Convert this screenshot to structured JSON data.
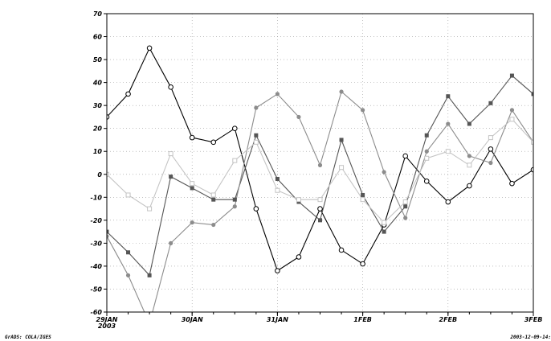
{
  "chart_data": {
    "type": "line",
    "x_ticks": [
      {
        "index": 0,
        "label": "29JAN",
        "sublabel": "2003"
      },
      {
        "index": 4,
        "label": "30JAN"
      },
      {
        "index": 8,
        "label": "31JAN"
      },
      {
        "index": 12,
        "label": "1FEB"
      },
      {
        "index": 16,
        "label": "2FEB"
      },
      {
        "index": 20,
        "label": "3FEB"
      }
    ],
    "x_points": 21,
    "x_range": [
      0,
      20
    ],
    "ylim": [
      -60,
      70
    ],
    "y_ticks": [
      -60,
      -50,
      -40,
      -30,
      -20,
      -10,
      0,
      10,
      20,
      30,
      40,
      50,
      60,
      70
    ],
    "grid": true,
    "series": [
      {
        "color": "#000000",
        "marker": "circle-open",
        "values": [
          25,
          35,
          55,
          38,
          16,
          14,
          20,
          -15,
          -42,
          -36,
          -15,
          -33,
          -39,
          -22,
          8,
          -3,
          -12,
          -5,
          11,
          -4,
          2
        ]
      },
      {
        "color": "#555555",
        "marker": "square-filled",
        "values": [
          -25,
          -34,
          -44,
          -1,
          -6,
          -11,
          -11,
          17,
          -2,
          -12,
          -20,
          15,
          -9,
          -25,
          -14,
          17,
          34,
          22,
          31,
          43,
          35
        ]
      },
      {
        "color": "#8c8c8c",
        "marker": "diamond-filled",
        "values": [
          -27,
          -44,
          -65,
          -30,
          -21,
          -22,
          -14,
          29,
          35,
          25,
          4,
          36,
          28,
          1,
          -19,
          10,
          22,
          8,
          5,
          28,
          14
        ]
      },
      {
        "color": "#c4c4c4",
        "marker": "square-open",
        "values": [
          0,
          -9,
          -15,
          9,
          -4,
          -9,
          6,
          14,
          -7,
          -11,
          -11,
          3,
          -11,
          -21,
          -12,
          7,
          10,
          4,
          16,
          24,
          14
        ]
      }
    ]
  },
  "footer": {
    "left": "GrADS: COLA/IGES",
    "right": "2003-12-09-14:"
  }
}
